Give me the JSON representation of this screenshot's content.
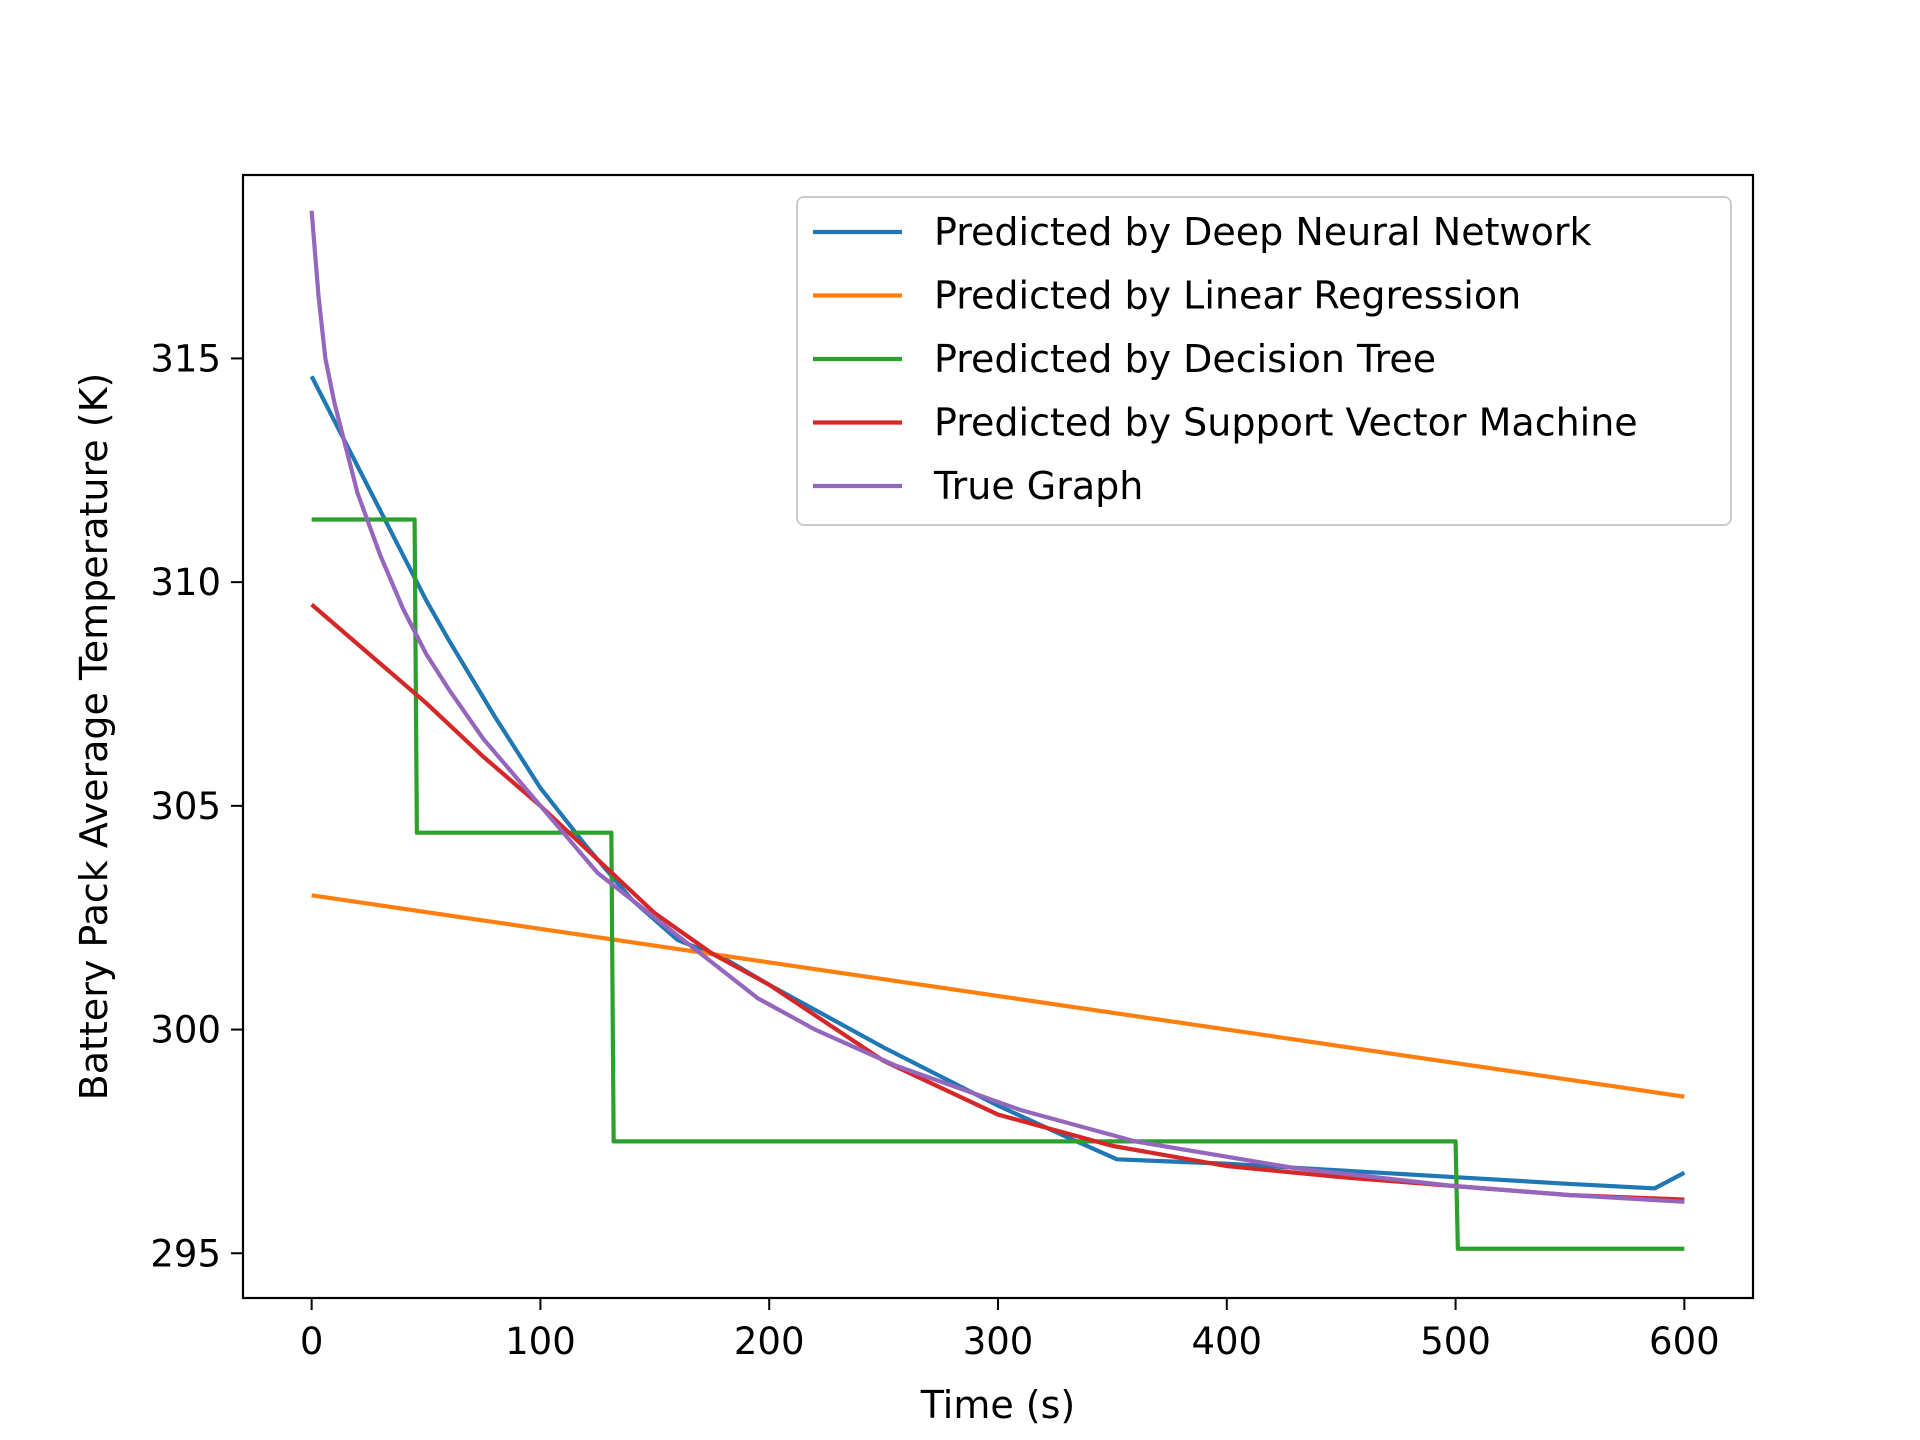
{
  "chart_data": {
    "type": "line",
    "title": "",
    "xlabel": "Time (s)",
    "ylabel": "Battery Pack Average Temperature (K)",
    "xlim": [
      -30,
      630
    ],
    "ylim": [
      294,
      319.1
    ],
    "xticks": [
      0,
      100,
      200,
      300,
      400,
      500,
      600
    ],
    "yticks": [
      295,
      300,
      305,
      310,
      315
    ],
    "grid": false,
    "legend_position": "top-right",
    "series": [
      {
        "name": "Predicted by Deep Neural Network",
        "color": "#1f77b4",
        "x": [
          0,
          20,
          40,
          50,
          60,
          80,
          100,
          120,
          140,
          160,
          180,
          200,
          250,
          300,
          330,
          352,
          400,
          450,
          500,
          550,
          587,
          600
        ],
        "y": [
          314.6,
          312.6,
          310.6,
          309.6,
          308.7,
          307.0,
          305.4,
          304.1,
          302.9,
          302.0,
          301.6,
          301.0,
          299.6,
          298.3,
          297.6,
          297.1,
          297.0,
          296.85,
          296.7,
          296.55,
          296.45,
          296.8
        ]
      },
      {
        "name": "Predicted by Linear Regression",
        "color": "#ff7f0e",
        "x": [
          0,
          600
        ],
        "y": [
          303.0,
          298.5
        ]
      },
      {
        "name": "Predicted by Decision Tree",
        "color": "#2ca02c",
        "x": [
          0,
          45,
          46,
          131,
          132,
          500,
          501,
          600
        ],
        "y": [
          311.4,
          311.4,
          304.4,
          304.4,
          297.5,
          297.5,
          295.1,
          295.1
        ]
      },
      {
        "name": "Predicted by Support Vector Machine",
        "color": "#d62728",
        "x": [
          0,
          25,
          50,
          75,
          100,
          125,
          150,
          175,
          200,
          250,
          300,
          350,
          400,
          450,
          500,
          550,
          600
        ],
        "y": [
          309.5,
          308.4,
          307.3,
          306.1,
          305.0,
          303.8,
          302.6,
          301.7,
          301.0,
          299.3,
          298.1,
          297.4,
          296.95,
          296.7,
          296.5,
          296.3,
          296.2
        ]
      },
      {
        "name": "True Graph",
        "color": "#9467bd",
        "x": [
          0,
          3,
          6,
          10,
          15,
          20,
          30,
          40,
          50,
          60,
          75,
          90,
          110,
          125,
          140,
          160,
          180,
          195,
          220,
          255,
          310,
          360,
          430,
          500,
          550,
          600
        ],
        "y": [
          318.3,
          316.4,
          315.0,
          314.0,
          313.0,
          312.0,
          310.6,
          309.4,
          308.4,
          307.6,
          306.5,
          305.6,
          304.4,
          303.5,
          302.9,
          302.1,
          301.3,
          300.7,
          300.0,
          299.2,
          298.2,
          297.5,
          296.9,
          296.5,
          296.3,
          296.15
        ]
      }
    ]
  }
}
